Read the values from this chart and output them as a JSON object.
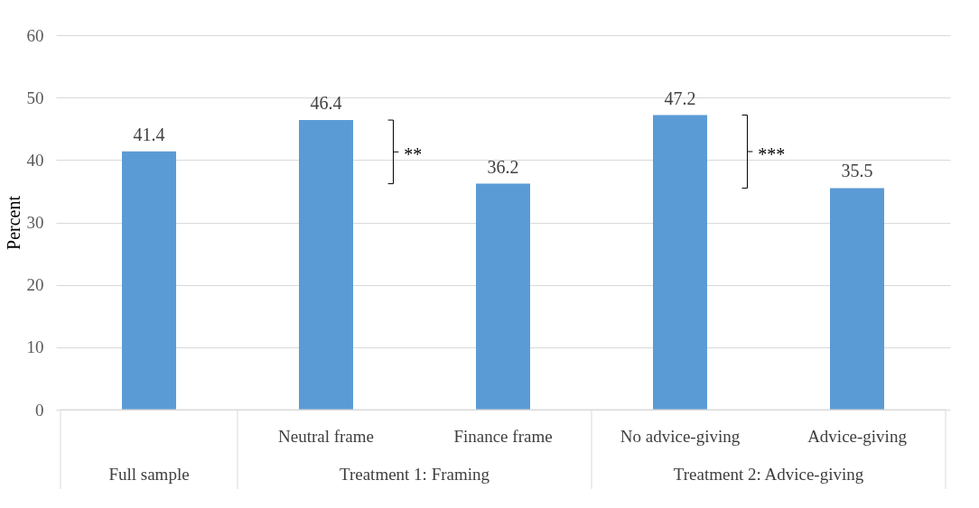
{
  "chart_data": {
    "type": "bar",
    "ylabel": "Percent",
    "categories": [
      null,
      "Neutral frame",
      "Finance frame",
      "No advice-giving",
      "Advice-giving"
    ],
    "values": [
      41.4,
      46.4,
      36.2,
      47.2,
      35.5
    ],
    "colors": [
      "#5b9bd5",
      "#5b9bd5",
      "#5b9bd5",
      "#5b9bd5",
      "#5b9bd5"
    ],
    "ylim": [
      0,
      60
    ],
    "yticks": [
      0,
      10,
      20,
      30,
      40,
      50,
      60
    ],
    "grid": "y",
    "data_labels": true,
    "annotations": [
      "Full sample",
      "Treatment 1: Framing",
      "Treatment 2: Advice-giving",
      "**",
      "***"
    ]
  }
}
